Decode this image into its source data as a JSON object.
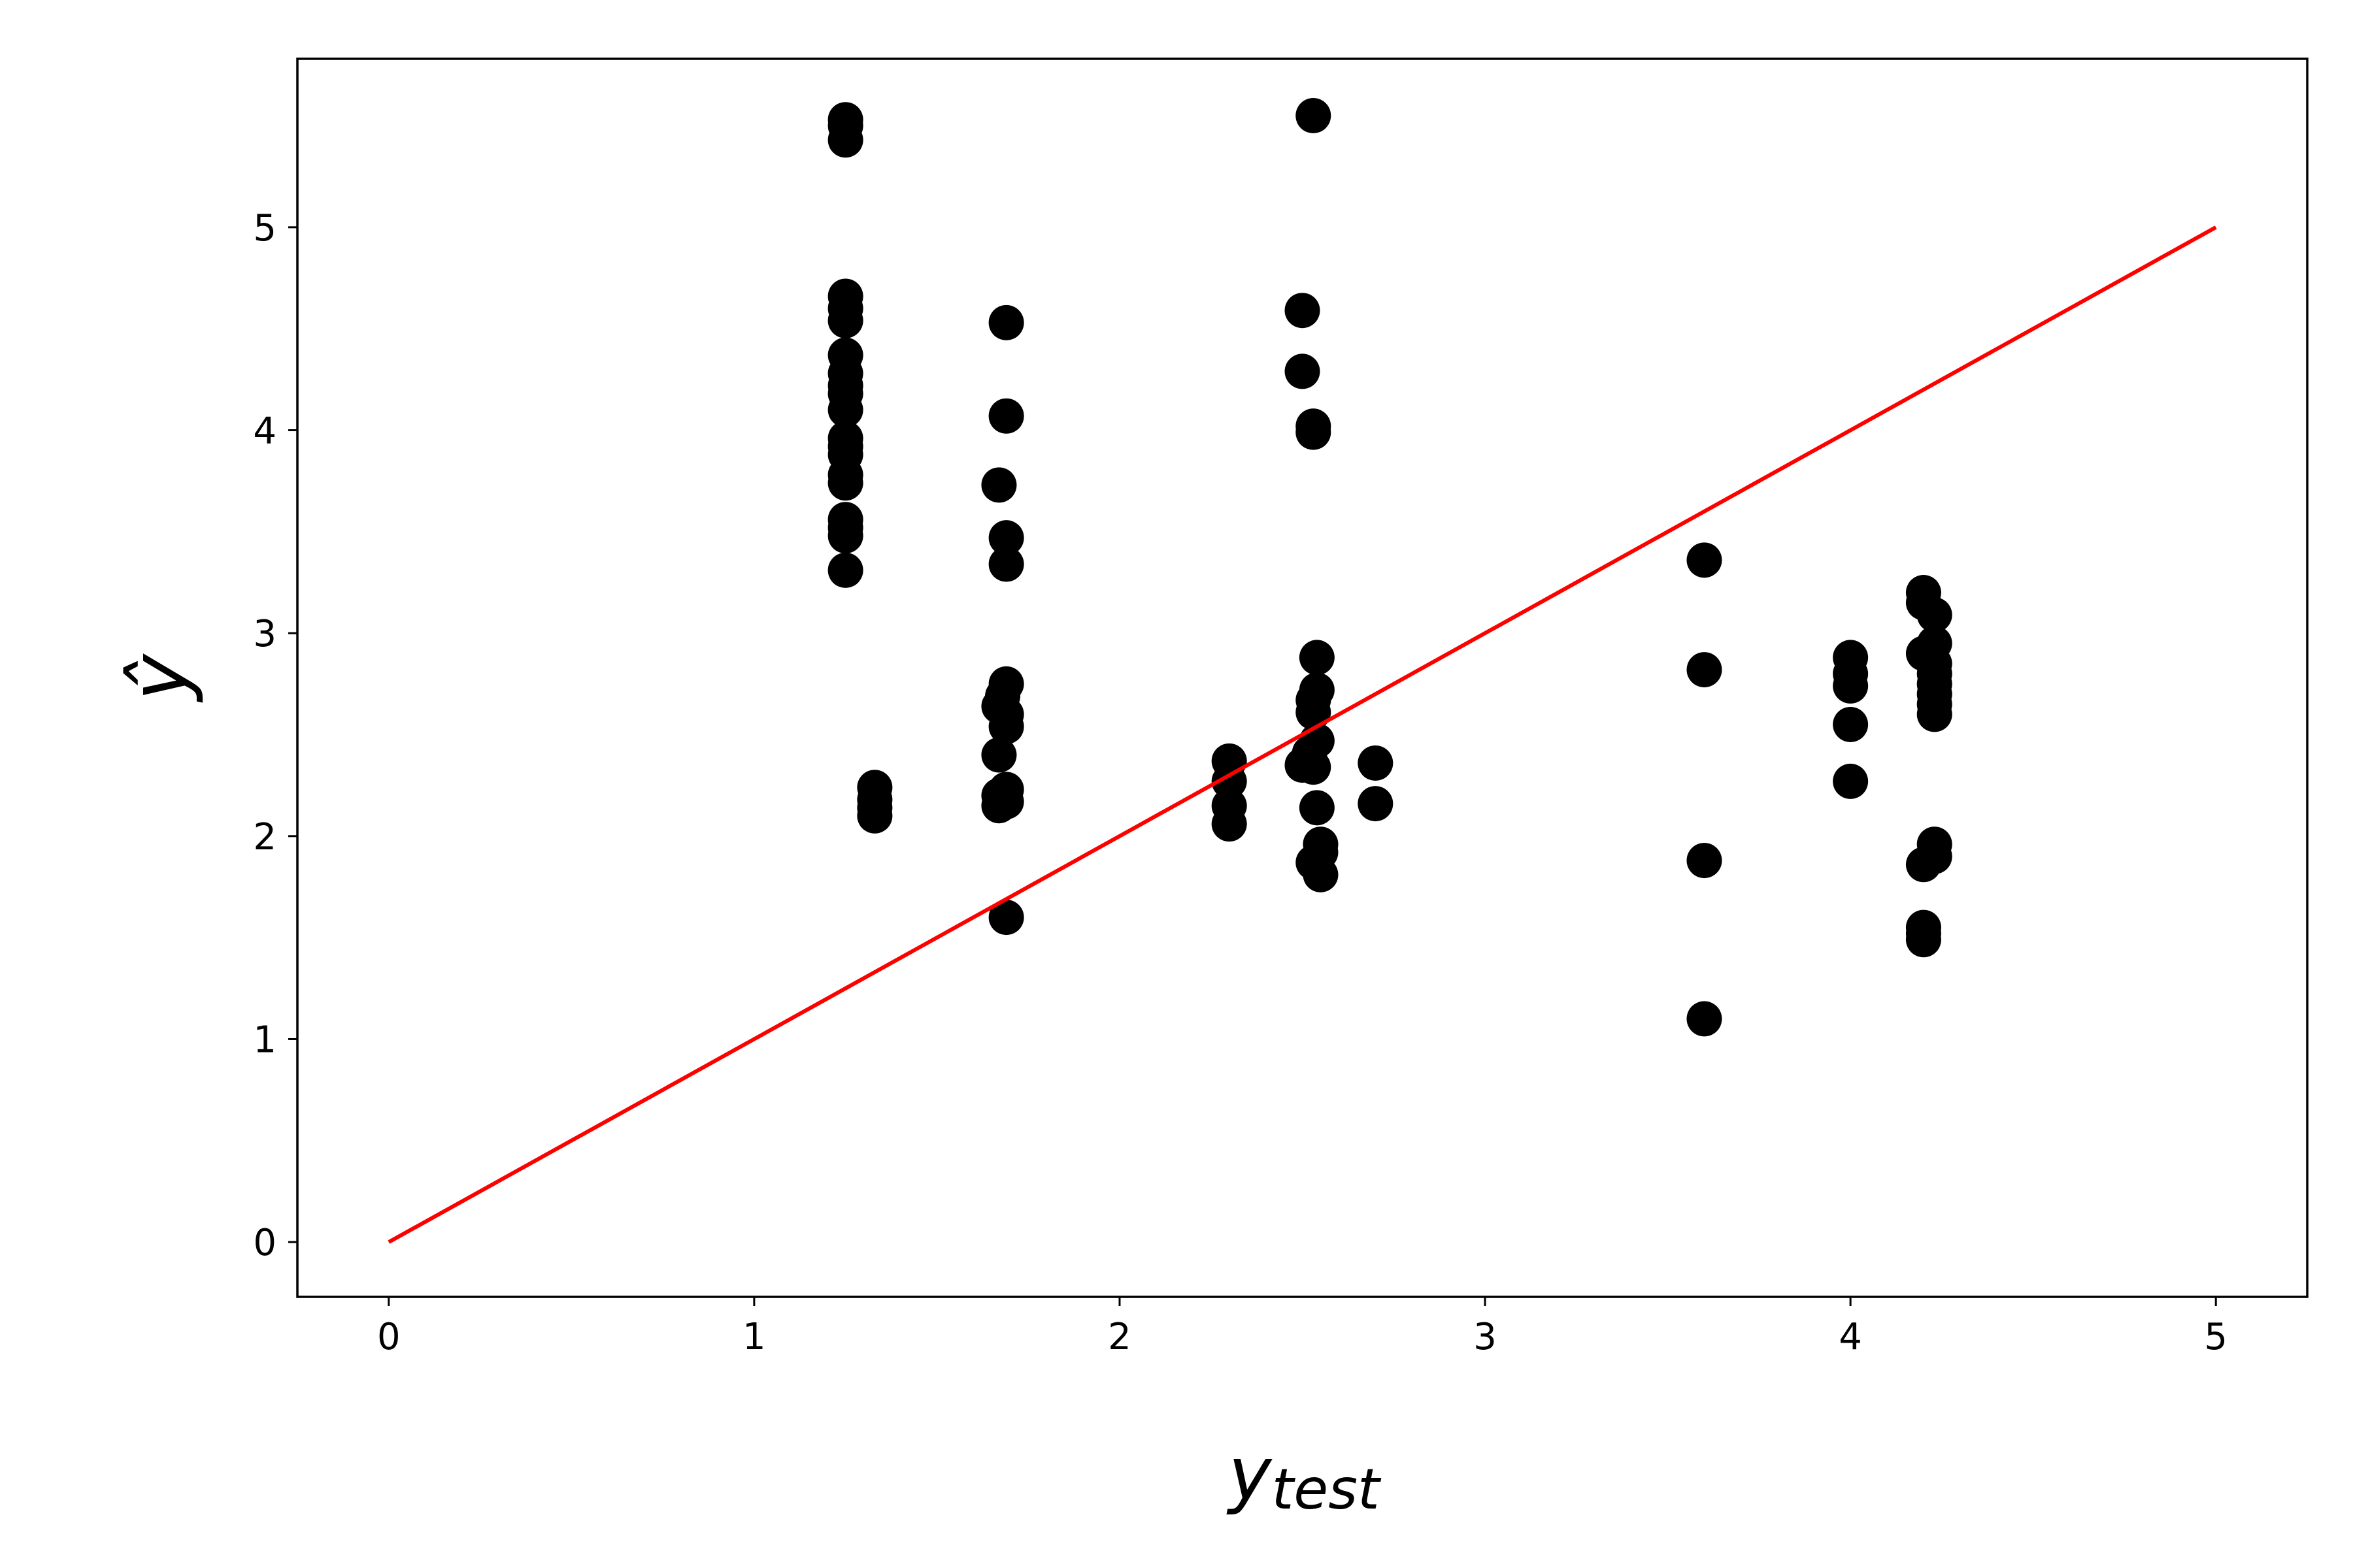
{
  "chart_data": {
    "type": "scatter",
    "xlabel": "y",
    "xlabel_subscript": "test",
    "ylabel": "ŷ",
    "xlim": [
      -0.25,
      5.25
    ],
    "ylim": [
      -0.27,
      5.83
    ],
    "x_ticks": [
      "0",
      "1",
      "2",
      "3",
      "4",
      "5"
    ],
    "y_ticks": [
      "0",
      "1",
      "2",
      "3",
      "4",
      "5"
    ],
    "grid": false,
    "point_color": "#000000",
    "line_color": "#ff0000",
    "reference_line": {
      "x": [
        0,
        5
      ],
      "y": [
        0,
        5
      ]
    },
    "points": [
      [
        1.25,
        5.53
      ],
      [
        1.25,
        5.5
      ],
      [
        1.25,
        5.43
      ],
      [
        1.25,
        4.66
      ],
      [
        1.25,
        4.6
      ],
      [
        1.25,
        4.54
      ],
      [
        1.25,
        4.37
      ],
      [
        1.25,
        4.28
      ],
      [
        1.25,
        4.22
      ],
      [
        1.25,
        4.18
      ],
      [
        1.25,
        4.1
      ],
      [
        1.25,
        3.96
      ],
      [
        1.25,
        3.92
      ],
      [
        1.25,
        3.88
      ],
      [
        1.25,
        3.78
      ],
      [
        1.25,
        3.74
      ],
      [
        1.25,
        3.56
      ],
      [
        1.25,
        3.52
      ],
      [
        1.25,
        3.48
      ],
      [
        1.25,
        3.31
      ],
      [
        1.33,
        2.24
      ],
      [
        1.33,
        2.18
      ],
      [
        1.33,
        2.14
      ],
      [
        1.33,
        2.1
      ],
      [
        1.69,
        4.53
      ],
      [
        1.69,
        4.07
      ],
      [
        1.67,
        3.73
      ],
      [
        1.69,
        3.47
      ],
      [
        1.69,
        3.34
      ],
      [
        1.69,
        2.75
      ],
      [
        1.68,
        2.69
      ],
      [
        1.67,
        2.64
      ],
      [
        1.69,
        2.6
      ],
      [
        1.69,
        2.54
      ],
      [
        1.67,
        2.4
      ],
      [
        1.69,
        2.23
      ],
      [
        1.67,
        2.2
      ],
      [
        1.69,
        2.17
      ],
      [
        1.67,
        2.15
      ],
      [
        1.69,
        1.6
      ],
      [
        2.3,
        2.37
      ],
      [
        2.3,
        2.27
      ],
      [
        2.3,
        2.15
      ],
      [
        2.3,
        2.06
      ],
      [
        2.53,
        5.55
      ],
      [
        2.5,
        4.59
      ],
      [
        2.5,
        4.29
      ],
      [
        2.53,
        4.02
      ],
      [
        2.53,
        3.99
      ],
      [
        2.54,
        2.88
      ],
      [
        2.54,
        2.72
      ],
      [
        2.53,
        2.67
      ],
      [
        2.53,
        2.61
      ],
      [
        2.54,
        2.47
      ],
      [
        2.52,
        2.41
      ],
      [
        2.5,
        2.35
      ],
      [
        2.53,
        2.34
      ],
      [
        2.54,
        2.14
      ],
      [
        2.55,
        1.96
      ],
      [
        2.55,
        1.92
      ],
      [
        2.53,
        1.87
      ],
      [
        2.55,
        1.81
      ],
      [
        2.7,
        2.36
      ],
      [
        2.7,
        2.16
      ],
      [
        3.6,
        3.36
      ],
      [
        3.6,
        2.82
      ],
      [
        3.6,
        1.88
      ],
      [
        3.6,
        1.1
      ],
      [
        4.0,
        2.88
      ],
      [
        4.0,
        2.8
      ],
      [
        4.0,
        2.74
      ],
      [
        4.0,
        2.55
      ],
      [
        4.0,
        2.27
      ],
      [
        4.2,
        3.2
      ],
      [
        4.2,
        3.15
      ],
      [
        4.23,
        3.09
      ],
      [
        4.23,
        2.95
      ],
      [
        4.2,
        2.9
      ],
      [
        4.23,
        2.85
      ],
      [
        4.23,
        2.8
      ],
      [
        4.23,
        2.75
      ],
      [
        4.23,
        2.7
      ],
      [
        4.23,
        2.65
      ],
      [
        4.23,
        2.6
      ],
      [
        4.23,
        1.96
      ],
      [
        4.23,
        1.9
      ],
      [
        4.2,
        1.86
      ],
      [
        4.2,
        1.55
      ],
      [
        4.2,
        1.52
      ],
      [
        4.2,
        1.49
      ]
    ]
  }
}
